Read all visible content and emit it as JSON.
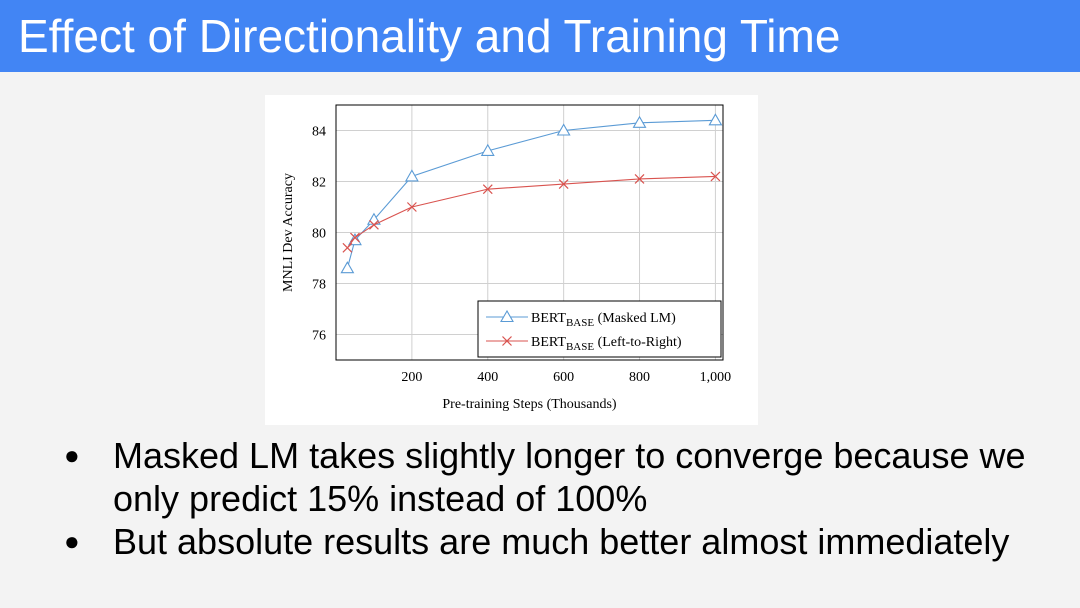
{
  "slide": {
    "title": "Effect of Directionality and Training Time",
    "bullets": [
      "Masked LM takes slightly longer to converge because we only predict 15% instead of 100%",
      "But absolute results are much better almost immediately"
    ],
    "bullet_glyph": "●"
  },
  "chart_data": {
    "type": "line",
    "title": "",
    "xlabel": "Pre-training Steps (Thousands)",
    "ylabel": "MNLI Dev Accuracy",
    "xlim": [
      0,
      1020
    ],
    "ylim": [
      75,
      85
    ],
    "x_ticks": [
      200,
      400,
      600,
      800,
      1000
    ],
    "x_tick_labels": [
      "200",
      "400",
      "600",
      "800",
      "1,000"
    ],
    "y_ticks": [
      76,
      78,
      80,
      82,
      84
    ],
    "y_tick_labels": [
      "76",
      "78",
      "80",
      "82",
      "84"
    ],
    "grid": true,
    "legend_position": "bottom-right",
    "series": [
      {
        "name": "BERT",
        "name_sub": "BASE",
        "name_suffix": " (Masked LM)",
        "marker": "triangle",
        "color": "#5b9bd5",
        "x": [
          30,
          50,
          100,
          200,
          400,
          600,
          800,
          1000
        ],
        "y": [
          78.6,
          79.7,
          80.5,
          82.2,
          83.2,
          84.0,
          84.3,
          84.4
        ]
      },
      {
        "name": "BERT",
        "name_sub": "BASE",
        "name_suffix": " (Left-to-Right)",
        "marker": "x",
        "color": "#d9534f",
        "x": [
          30,
          50,
          100,
          200,
          400,
          600,
          800,
          1000
        ],
        "y": [
          79.4,
          79.8,
          80.3,
          81.0,
          81.7,
          81.9,
          82.1,
          82.2
        ]
      }
    ]
  }
}
